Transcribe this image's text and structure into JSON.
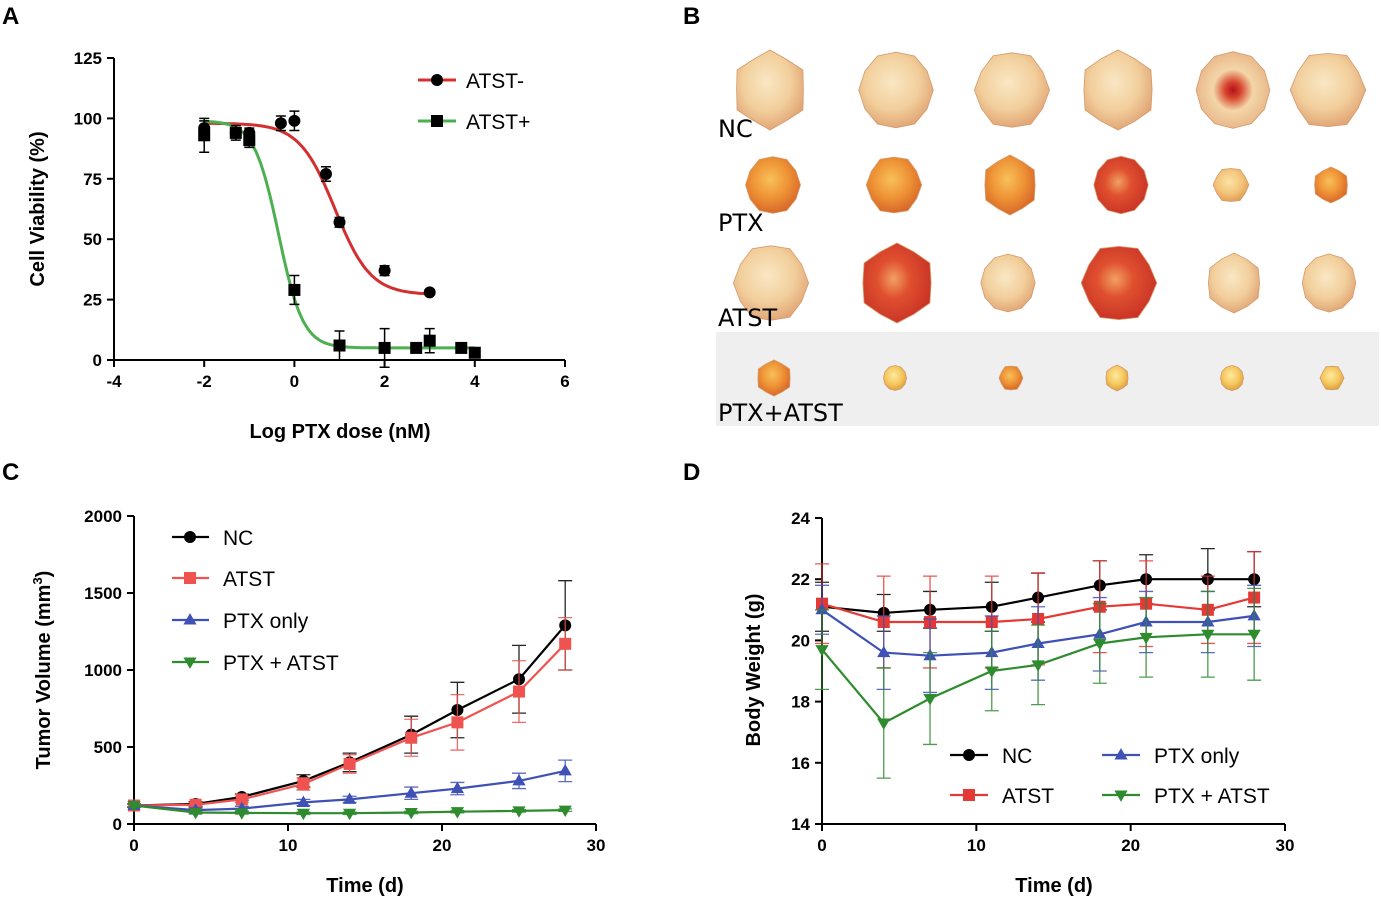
{
  "panels": {
    "a": "A",
    "b": "B",
    "c": "C",
    "d": "D"
  },
  "colors": {
    "red": "#d32f2f",
    "green": "#4caf50",
    "black": "#000000",
    "pink": "#ef5350",
    "blue": "#3f51b5",
    "dgreen": "#2e8b2e"
  },
  "chart_data": [
    {
      "panel": "A",
      "type": "scatter",
      "fit": "sigmoid dose-response",
      "xlabel": "Log PTX dose (nM)",
      "ylabel": "Cell Viability (%)",
      "xlim": [
        -4,
        6
      ],
      "ylim": [
        0,
        125
      ],
      "xticks": [
        -4,
        -2,
        0,
        2,
        4,
        6
      ],
      "yticks": [
        0,
        25,
        50,
        75,
        100,
        125
      ],
      "legend_position": "top-right",
      "series": [
        {
          "name": "ATST-",
          "marker": "circle",
          "color": "#d32f2f",
          "fit_params": {
            "top": 98,
            "bottom": 27,
            "ic50": 0.9,
            "hill": 1.1
          },
          "points": [
            {
              "x": -2,
              "y": 96,
              "err": 3
            },
            {
              "x": -1.3,
              "y": 94,
              "err": 2
            },
            {
              "x": -1,
              "y": 94,
              "err": 2
            },
            {
              "x": -0.3,
              "y": 98,
              "err": 3
            },
            {
              "x": 0,
              "y": 99,
              "err": 4
            },
            {
              "x": 0.7,
              "y": 77,
              "err": 3
            },
            {
              "x": 1,
              "y": 57,
              "err": 2
            },
            {
              "x": 2,
              "y": 37,
              "err": 2
            },
            {
              "x": 3,
              "y": 28,
              "err": 1
            }
          ]
        },
        {
          "name": "ATST+",
          "marker": "square",
          "color": "#4caf50",
          "fit_params": {
            "top": 99,
            "bottom": 5,
            "ic50": -0.35,
            "hill": 1.6
          },
          "points": [
            {
              "x": -2,
              "y": 93,
              "err": 7
            },
            {
              "x": -1.3,
              "y": 94,
              "err": 3
            },
            {
              "x": -1,
              "y": 91,
              "err": 3
            },
            {
              "x": 0,
              "y": 29,
              "err": 6
            },
            {
              "x": 1,
              "y": 6,
              "err": 6
            },
            {
              "x": 2,
              "y": 5,
              "err": 8
            },
            {
              "x": 2.7,
              "y": 5,
              "err": 2
            },
            {
              "x": 3,
              "y": 8,
              "err": 5
            },
            {
              "x": 3.7,
              "y": 5,
              "err": 1
            },
            {
              "x": 4,
              "y": 3,
              "err": 2
            }
          ]
        }
      ]
    },
    {
      "panel": "C",
      "type": "line",
      "xlabel": "Time (d)",
      "ylabel": "Tumor Volume (mm",
      "ylabel_sup": "3",
      "ylabel_end": ")",
      "xlim": [
        0,
        30
      ],
      "ylim": [
        0,
        2000
      ],
      "xticks": [
        0,
        10,
        20,
        30
      ],
      "yticks": [
        0,
        500,
        1000,
        1500,
        2000
      ],
      "x": [
        0,
        4,
        7,
        11,
        14,
        18,
        21,
        25,
        28
      ],
      "legend_position": "top-left",
      "series": [
        {
          "name": "NC",
          "marker": "circle",
          "color": "#000000",
          "values": [
            120,
            130,
            175,
            280,
            400,
            580,
            740,
            940,
            1290
          ],
          "errors": [
            10,
            15,
            20,
            40,
            60,
            120,
            180,
            220,
            290
          ]
        },
        {
          "name": "ATST",
          "marker": "square",
          "color": "#ef5350",
          "values": [
            120,
            125,
            160,
            260,
            390,
            560,
            660,
            860,
            1170
          ],
          "errors": [
            10,
            15,
            20,
            40,
            60,
            120,
            180,
            200,
            170
          ]
        },
        {
          "name": "PTX only",
          "marker": "triangle-up",
          "color": "#3f51b5",
          "values": [
            120,
            90,
            100,
            140,
            160,
            200,
            230,
            280,
            345
          ],
          "errors": [
            10,
            15,
            15,
            20,
            20,
            40,
            40,
            50,
            70
          ]
        },
        {
          "name": "PTX + ATST",
          "marker": "triangle-down",
          "color": "#2e8b2e",
          "values": [
            120,
            75,
            72,
            70,
            70,
            75,
            80,
            85,
            90
          ],
          "errors": [
            10,
            8,
            8,
            8,
            8,
            8,
            8,
            8,
            8
          ]
        }
      ]
    },
    {
      "panel": "D",
      "type": "line",
      "xlabel": "Time (d)",
      "ylabel": "Body Weight (g)",
      "xlim": [
        0,
        30
      ],
      "ylim": [
        14,
        24
      ],
      "xticks": [
        0,
        10,
        20,
        30
      ],
      "yticks": [
        14,
        16,
        18,
        20,
        22,
        24
      ],
      "x": [
        0,
        4,
        7,
        11,
        14,
        18,
        21,
        25,
        28
      ],
      "legend_position": "bottom-right",
      "series": [
        {
          "name": "NC",
          "marker": "circle",
          "color": "#000000",
          "values": [
            21.1,
            20.9,
            21.0,
            21.1,
            21.4,
            21.8,
            22.0,
            22.0,
            22.0
          ],
          "errors": [
            0.8,
            0.6,
            0.6,
            0.8,
            0.8,
            0.8,
            0.8,
            1.0,
            0.9
          ]
        },
        {
          "name": "ATST",
          "marker": "square",
          "color": "#e53935",
          "values": [
            21.2,
            20.6,
            20.6,
            20.6,
            20.7,
            21.1,
            21.2,
            21.0,
            21.4
          ],
          "errors": [
            1.3,
            1.5,
            1.5,
            1.5,
            1.5,
            1.5,
            1.4,
            1.1,
            1.5
          ]
        },
        {
          "name": "PTX only",
          "marker": "triangle-up",
          "color": "#3f51b5",
          "values": [
            21.0,
            19.6,
            19.5,
            19.6,
            19.9,
            20.2,
            20.6,
            20.6,
            20.8
          ],
          "errors": [
            0.8,
            1.2,
            1.2,
            1.2,
            1.2,
            1.2,
            1.0,
            1.0,
            1.0
          ]
        },
        {
          "name": "PTX + ATST",
          "marker": "triangle-down",
          "color": "#2e8b2e",
          "values": [
            19.7,
            17.3,
            18.1,
            19.0,
            19.2,
            19.9,
            20.1,
            20.2,
            20.2
          ],
          "errors": [
            1.3,
            1.8,
            1.5,
            1.3,
            1.3,
            1.3,
            1.3,
            1.4,
            1.5
          ]
        }
      ]
    }
  ],
  "photo": {
    "rows": [
      {
        "label": "NC",
        "tumors": [
          {
            "size": "large",
            "tone": "pale"
          },
          {
            "size": "large",
            "tone": "pale"
          },
          {
            "size": "large",
            "tone": "pale"
          },
          {
            "size": "large",
            "tone": "pale"
          },
          {
            "size": "large",
            "tone": "pale-red-center"
          },
          {
            "size": "large",
            "tone": "pale"
          }
        ]
      },
      {
        "label": "PTX",
        "tumors": [
          {
            "size": "medium",
            "tone": "orange"
          },
          {
            "size": "medium",
            "tone": "orange"
          },
          {
            "size": "medium",
            "tone": "orange"
          },
          {
            "size": "medium",
            "tone": "red"
          },
          {
            "size": "small",
            "tone": "pale-orange"
          },
          {
            "size": "small",
            "tone": "orange"
          }
        ]
      },
      {
        "label": "ATST",
        "tumors": [
          {
            "size": "large",
            "tone": "pale"
          },
          {
            "size": "large",
            "tone": "red"
          },
          {
            "size": "medium",
            "tone": "pale"
          },
          {
            "size": "large",
            "tone": "red"
          },
          {
            "size": "medium",
            "tone": "pale"
          },
          {
            "size": "medium",
            "tone": "pale"
          }
        ]
      },
      {
        "label": "PTX+ATST",
        "tumors": [
          {
            "size": "small",
            "tone": "orange"
          },
          {
            "size": "tiny",
            "tone": "yellow"
          },
          {
            "size": "tiny",
            "tone": "orange"
          },
          {
            "size": "tiny",
            "tone": "yellow"
          },
          {
            "size": "tiny",
            "tone": "yellow"
          },
          {
            "size": "tiny",
            "tone": "yellow"
          }
        ]
      }
    ]
  }
}
